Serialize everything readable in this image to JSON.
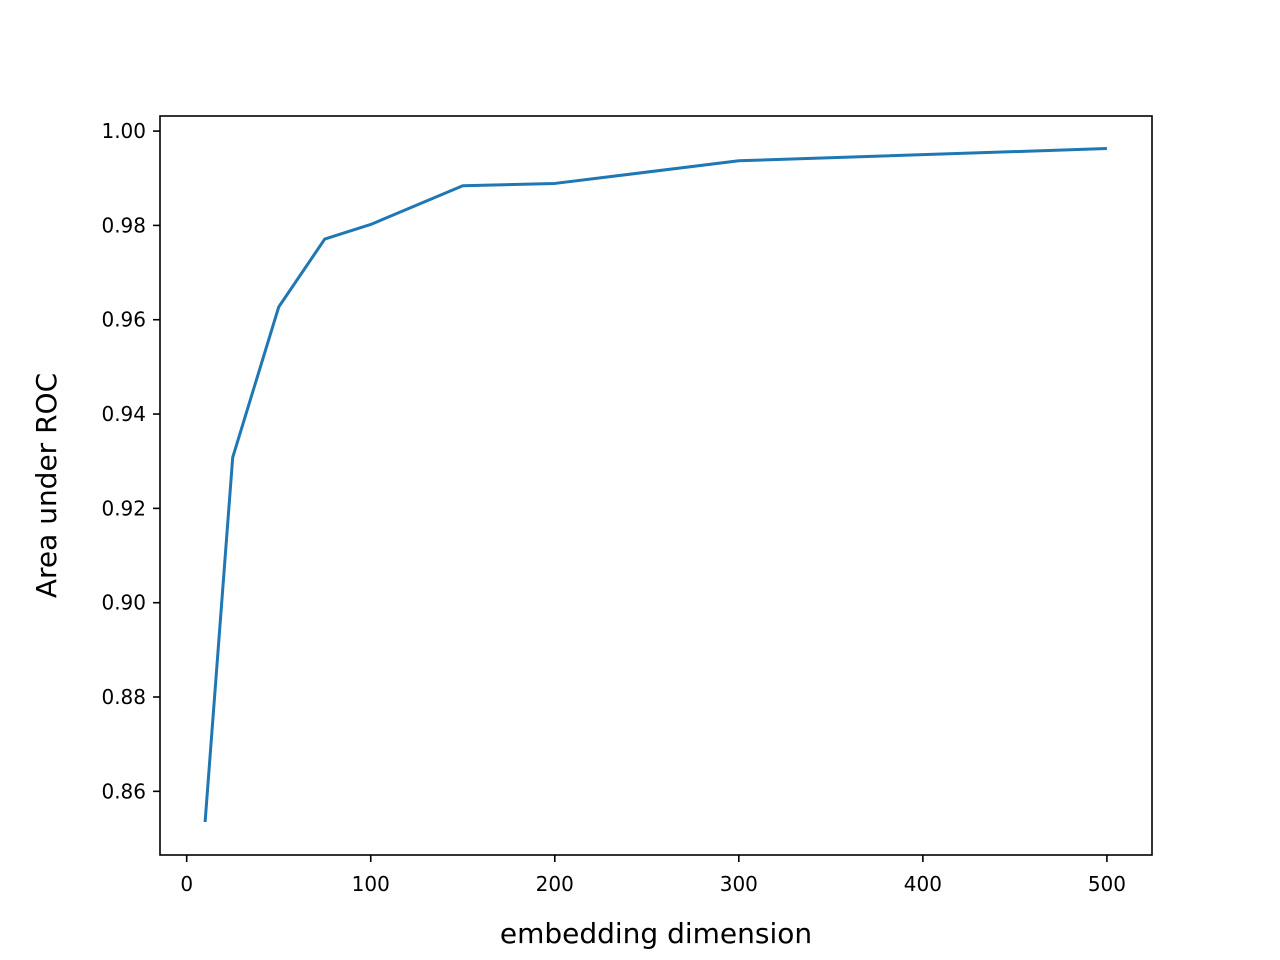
{
  "chart_data": {
    "type": "line",
    "title": "",
    "xlabel": "embedding dimension",
    "ylabel": "Area under ROC",
    "xlim": [
      -14.5,
      524.5
    ],
    "ylim": [
      0.8465,
      1.0032
    ],
    "xticks": [
      0,
      100,
      200,
      300,
      400,
      500
    ],
    "xtick_labels": [
      "0",
      "100",
      "200",
      "300",
      "400",
      "500"
    ],
    "yticks": [
      0.86,
      0.88,
      0.9,
      0.92,
      0.94,
      0.96,
      0.98,
      1.0
    ],
    "ytick_labels": [
      "0.86",
      "0.88",
      "0.90",
      "0.92",
      "0.94",
      "0.96",
      "0.98",
      "1.00"
    ],
    "grid": false,
    "legend": "none",
    "series": [
      {
        "color": "#1f77b4",
        "x": [
          10,
          25,
          50,
          75,
          100,
          150,
          200,
          300,
          500
        ],
        "y": [
          0.8535,
          0.9308,
          0.9627,
          0.9771,
          0.9802,
          0.9884,
          0.9889,
          0.9937,
          0.9963
        ]
      }
    ]
  }
}
